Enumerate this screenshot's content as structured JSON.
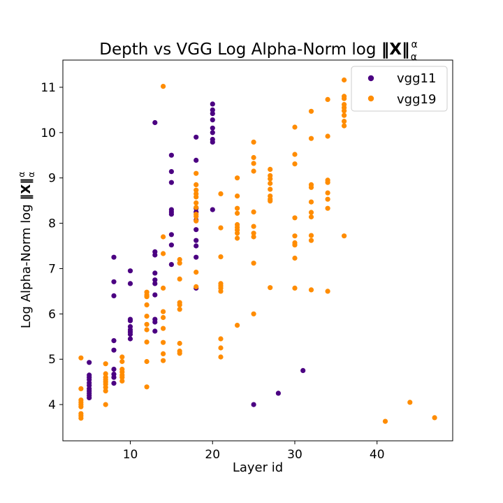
{
  "chart_data": {
    "type": "scatter",
    "title_text": "Depth vs VGG Log Alpha-Norm log ",
    "title_norm_symbol": "‖X‖",
    "title_norm_sup": "α",
    "title_norm_sub": "α",
    "xlabel": "Layer id",
    "ylabel_text": "Log Alpha-Norm log ",
    "ylabel_norm_symbol": "‖X‖",
    "ylabel_norm_sup": "α",
    "ylabel_norm_sub": "α",
    "xlim": [
      1.8,
      49.2
    ],
    "ylim": [
      3.2,
      11.6
    ],
    "xticks": [
      10,
      20,
      30,
      40
    ],
    "yticks": [
      4,
      5,
      6,
      7,
      8,
      9,
      10,
      11
    ],
    "grid": false,
    "legend_position": "top-right",
    "series": [
      {
        "name": "vgg11",
        "color": "#4b0082",
        "points": [
          [
            5,
            4.93
          ],
          [
            5,
            4.65
          ],
          [
            5,
            4.6
          ],
          [
            5,
            4.55
          ],
          [
            5,
            4.48
          ],
          [
            5,
            4.42
          ],
          [
            5,
            4.35
          ],
          [
            5,
            4.3
          ],
          [
            5,
            4.25
          ],
          [
            5,
            4.2
          ],
          [
            5,
            4.15
          ],
          [
            8,
            7.25
          ],
          [
            8,
            6.71
          ],
          [
            8,
            6.4
          ],
          [
            8,
            5.41
          ],
          [
            8,
            5.2
          ],
          [
            8,
            4.78
          ],
          [
            8,
            4.67
          ],
          [
            8,
            4.6
          ],
          [
            8,
            4.47
          ],
          [
            10,
            6.95
          ],
          [
            10,
            6.67
          ],
          [
            10,
            5.88
          ],
          [
            10,
            5.85
          ],
          [
            10,
            5.72
          ],
          [
            10,
            5.65
          ],
          [
            10,
            5.6
          ],
          [
            10,
            5.55
          ],
          [
            10,
            5.45
          ],
          [
            13,
            10.22
          ],
          [
            13,
            7.37
          ],
          [
            13,
            7.3
          ],
          [
            13,
            6.9
          ],
          [
            13,
            6.75
          ],
          [
            13,
            6.67
          ],
          [
            13,
            6.42
          ],
          [
            13,
            5.88
          ],
          [
            13,
            5.82
          ],
          [
            13,
            5.62
          ],
          [
            15,
            9.5
          ],
          [
            15,
            9.14
          ],
          [
            15,
            8.9
          ],
          [
            15,
            8.3
          ],
          [
            15,
            8.25
          ],
          [
            15,
            8.2
          ],
          [
            15,
            7.75
          ],
          [
            15,
            7.52
          ],
          [
            15,
            7.09
          ],
          [
            18,
            9.9
          ],
          [
            18,
            9.39
          ],
          [
            18,
            8.33
          ],
          [
            18,
            8.25
          ],
          [
            18,
            8.07
          ],
          [
            18,
            7.86
          ],
          [
            18,
            7.62
          ],
          [
            18,
            7.5
          ],
          [
            18,
            7.25
          ],
          [
            18,
            6.57
          ],
          [
            20,
            10.63
          ],
          [
            20,
            10.5
          ],
          [
            20,
            10.42
          ],
          [
            20,
            10.28
          ],
          [
            20,
            10.1
          ],
          [
            20,
            10.0
          ],
          [
            20,
            9.85
          ],
          [
            20,
            9.79
          ],
          [
            20,
            8.3
          ],
          [
            25,
            4.0
          ],
          [
            28,
            4.25
          ],
          [
            31,
            4.75
          ]
        ]
      },
      {
        "name": "vgg19",
        "color": "#ff8c00",
        "points": [
          [
            4,
            5.03
          ],
          [
            4,
            4.35
          ],
          [
            4,
            4.1
          ],
          [
            4,
            4.05
          ],
          [
            4,
            4.0
          ],
          [
            4,
            3.95
          ],
          [
            4,
            3.8
          ],
          [
            4,
            3.75
          ],
          [
            4,
            3.7
          ],
          [
            7,
            4.9
          ],
          [
            7,
            4.68
          ],
          [
            7,
            4.6
          ],
          [
            7,
            4.55
          ],
          [
            7,
            4.5
          ],
          [
            7,
            4.45
          ],
          [
            7,
            4.38
          ],
          [
            7,
            4.3
          ],
          [
            7,
            4.0
          ],
          [
            9,
            5.05
          ],
          [
            9,
            4.95
          ],
          [
            9,
            4.78
          ],
          [
            9,
            4.72
          ],
          [
            9,
            4.65
          ],
          [
            9,
            4.6
          ],
          [
            9,
            4.52
          ],
          [
            12,
            6.48
          ],
          [
            12,
            6.42
          ],
          [
            12,
            6.38
          ],
          [
            12,
            6.2
          ],
          [
            12,
            5.95
          ],
          [
            12,
            5.77
          ],
          [
            12,
            5.65
          ],
          [
            12,
            5.38
          ],
          [
            12,
            4.95
          ],
          [
            12,
            4.39
          ],
          [
            14,
            11.02
          ],
          [
            14,
            7.7
          ],
          [
            14,
            7.33
          ],
          [
            14,
            6.57
          ],
          [
            14,
            6.05
          ],
          [
            14,
            5.92
          ],
          [
            14,
            5.68
          ],
          [
            14,
            5.37
          ],
          [
            14,
            5.12
          ],
          [
            14,
            4.97
          ],
          [
            16,
            7.2
          ],
          [
            16,
            7.12
          ],
          [
            16,
            6.77
          ],
          [
            16,
            6.25
          ],
          [
            16,
            6.2
          ],
          [
            16,
            6.1
          ],
          [
            16,
            5.35
          ],
          [
            16,
            5.18
          ],
          [
            16,
            5.13
          ],
          [
            18,
            9.1
          ],
          [
            18,
            8.85
          ],
          [
            18,
            8.73
          ],
          [
            18,
            8.65
          ],
          [
            18,
            8.58
          ],
          [
            18,
            8.45
          ],
          [
            18,
            8.35
          ],
          [
            18,
            8.2
          ],
          [
            18,
            8.15
          ],
          [
            18,
            8.05
          ],
          [
            18,
            6.92
          ],
          [
            18,
            6.6
          ],
          [
            21,
            8.65
          ],
          [
            21,
            7.9
          ],
          [
            21,
            7.26
          ],
          [
            21,
            6.67
          ],
          [
            21,
            6.62
          ],
          [
            21,
            6.57
          ],
          [
            21,
            6.5
          ],
          [
            21,
            5.45
          ],
          [
            21,
            5.25
          ],
          [
            21,
            5.05
          ],
          [
            23,
            9.0
          ],
          [
            23,
            8.6
          ],
          [
            23,
            8.33
          ],
          [
            23,
            8.22
          ],
          [
            23,
            7.97
          ],
          [
            23,
            7.91
          ],
          [
            23,
            7.85
          ],
          [
            23,
            7.78
          ],
          [
            23,
            7.67
          ],
          [
            23,
            5.75
          ],
          [
            25,
            9.79
          ],
          [
            25,
            9.45
          ],
          [
            25,
            9.32
          ],
          [
            25,
            9.15
          ],
          [
            25,
            8.25
          ],
          [
            25,
            7.93
          ],
          [
            25,
            7.78
          ],
          [
            25,
            7.7
          ],
          [
            25,
            7.12
          ],
          [
            25,
            6.0
          ],
          [
            27,
            9.19
          ],
          [
            27,
            9.05
          ],
          [
            27,
            8.98
          ],
          [
            27,
            8.88
          ],
          [
            27,
            8.75
          ],
          [
            27,
            8.6
          ],
          [
            27,
            8.53
          ],
          [
            27,
            8.49
          ],
          [
            27,
            6.58
          ],
          [
            30,
            10.12
          ],
          [
            30,
            9.52
          ],
          [
            30,
            9.31
          ],
          [
            30,
            8.12
          ],
          [
            30,
            7.72
          ],
          [
            30,
            7.57
          ],
          [
            30,
            7.52
          ],
          [
            30,
            7.23
          ],
          [
            30,
            6.57
          ],
          [
            32,
            10.47
          ],
          [
            32,
            9.87
          ],
          [
            32,
            8.85
          ],
          [
            32,
            8.79
          ],
          [
            32,
            8.47
          ],
          [
            32,
            8.24
          ],
          [
            32,
            8.14
          ],
          [
            32,
            7.73
          ],
          [
            32,
            7.62
          ],
          [
            32,
            6.53
          ],
          [
            34,
            10.73
          ],
          [
            34,
            9.92
          ],
          [
            34,
            8.95
          ],
          [
            34,
            8.9
          ],
          [
            34,
            8.67
          ],
          [
            34,
            8.53
          ],
          [
            34,
            8.33
          ],
          [
            34,
            6.5
          ],
          [
            36,
            11.16
          ],
          [
            36,
            10.8
          ],
          [
            36,
            10.75
          ],
          [
            36,
            10.62
          ],
          [
            36,
            10.55
          ],
          [
            36,
            10.48
          ],
          [
            36,
            10.38
          ],
          [
            36,
            10.25
          ],
          [
            36,
            10.15
          ],
          [
            36,
            7.72
          ],
          [
            41,
            3.63
          ],
          [
            44,
            4.05
          ],
          [
            47,
            3.71
          ]
        ]
      }
    ]
  }
}
